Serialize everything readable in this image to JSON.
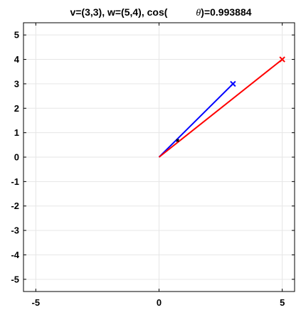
{
  "chart_data": {
    "type": "line",
    "title_prefix": "v=(3,3), w=(5,4), cos(",
    "title_symbol": "θ",
    "title_suffix": ")=0.993884",
    "xlabel": "",
    "ylabel": "",
    "xlim": [
      -5.5,
      5.5
    ],
    "ylim": [
      -5.5,
      5.5
    ],
    "grid": true,
    "x_ticks": [
      -5,
      0,
      5
    ],
    "x_tick_labels": [
      "-5",
      "0",
      "5"
    ],
    "y_ticks": [
      5,
      4,
      3,
      2,
      1,
      0,
      -1,
      -2,
      -3,
      -4,
      -5
    ],
    "y_tick_labels": [
      "5",
      "4",
      "3",
      "2",
      "1",
      "0",
      "-1",
      "-2",
      "-3",
      "-4",
      "-5"
    ],
    "series": [
      {
        "color": "#0000ff",
        "points": [
          [
            0,
            0
          ],
          [
            3,
            3
          ]
        ],
        "end_marker": "x"
      },
      {
        "color": "#ff0000",
        "points": [
          [
            0,
            0
          ],
          [
            5,
            4
          ]
        ],
        "end_marker": "x"
      }
    ],
    "projection_point": {
      "x": 0.756,
      "y": 0.681,
      "color": "#000000"
    },
    "colors": {
      "v": "#0000ff",
      "w": "#ff0000",
      "projection": "#000000",
      "grid": "#e6e6e6",
      "axes": "#000000"
    }
  }
}
